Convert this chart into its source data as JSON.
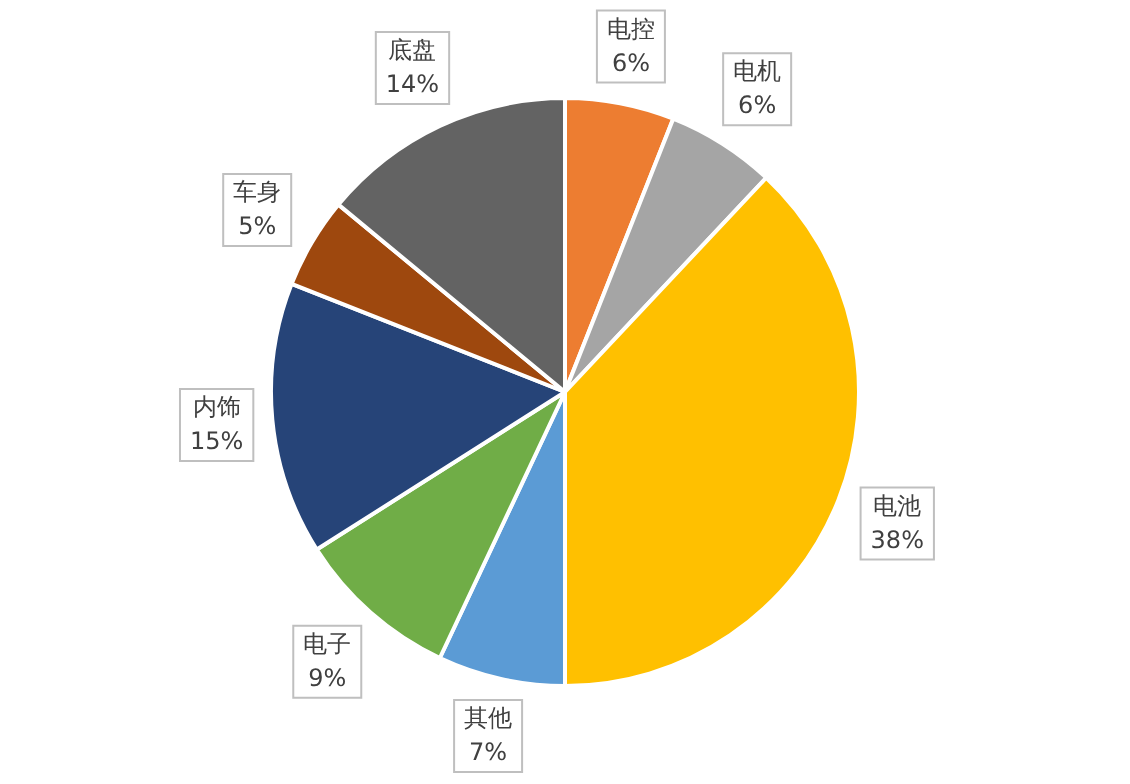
{
  "chart_data": {
    "type": "pie",
    "categories": [
      "电控",
      "电机",
      "电池",
      "其他",
      "电子",
      "内饰",
      "车身",
      "底盘"
    ],
    "values": [
      6,
      6,
      38,
      7,
      9,
      15,
      5,
      14
    ],
    "colors": [
      "#ed7d31",
      "#a5a5a5",
      "#ffc000",
      "#5b9bd5",
      "#70ad47",
      "#264478",
      "#9e480e",
      "#636363"
    ],
    "value_labels": [
      "6%",
      "6%",
      "38%",
      "7%",
      "9%",
      "15%",
      "5%",
      "14%"
    ],
    "legend": false
  }
}
